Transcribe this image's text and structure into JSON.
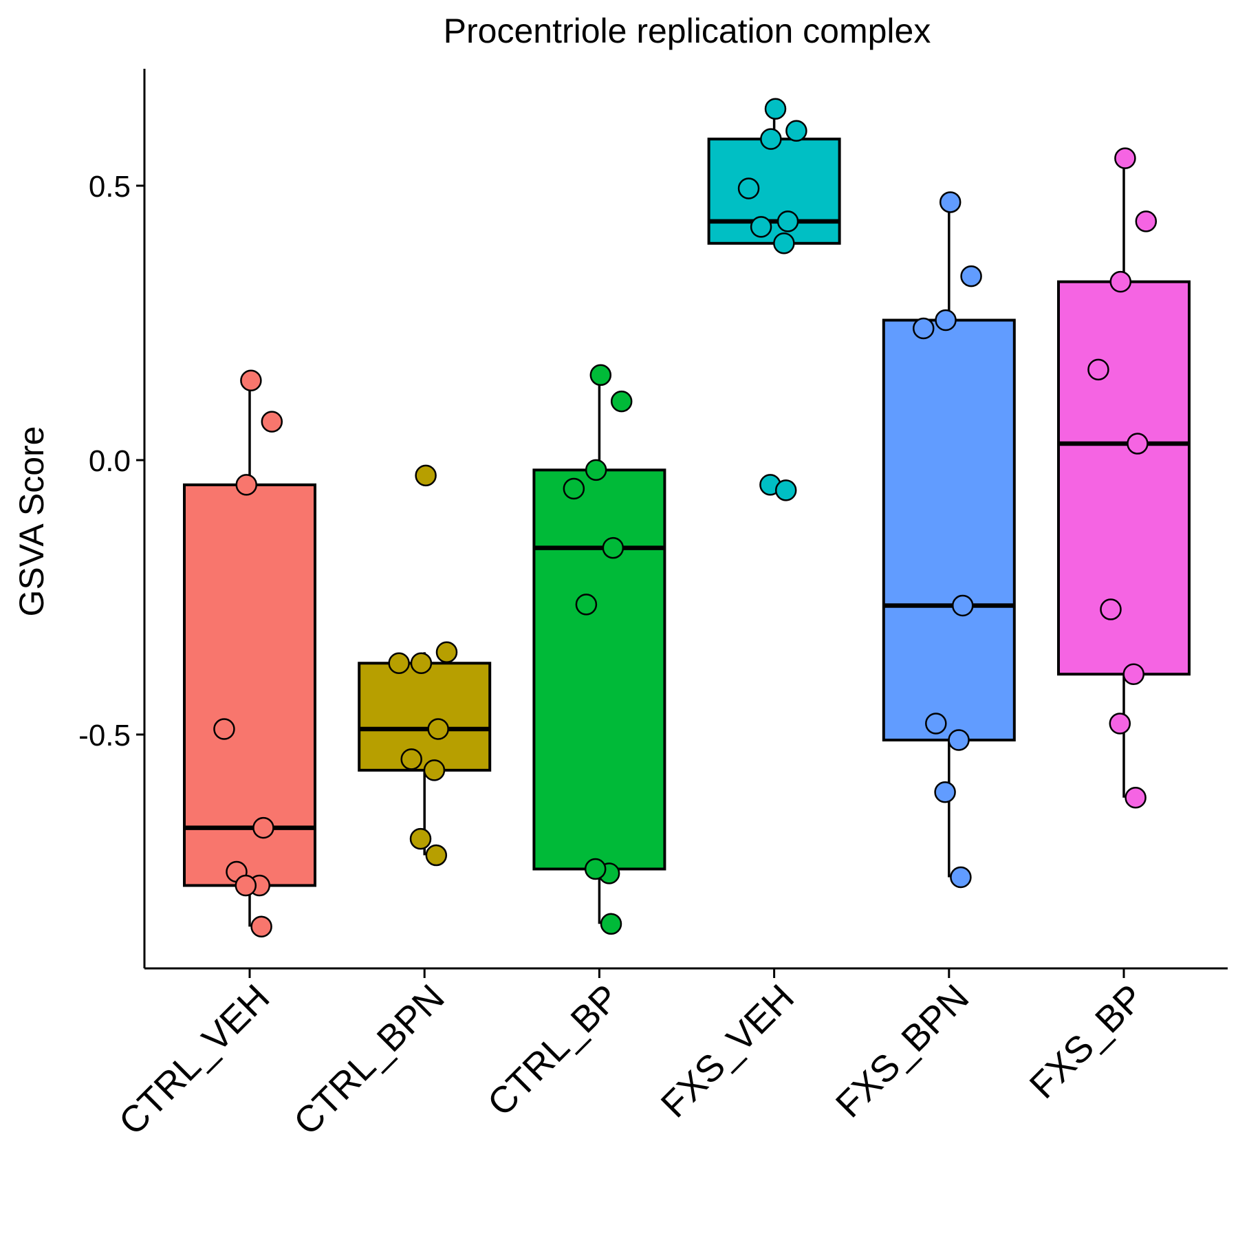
{
  "chart_data": {
    "type": "box",
    "title": "Procentriole replication complex",
    "xlabel": "",
    "ylabel": "GSVA Score",
    "ylim": [
      -0.91,
      0.72
    ],
    "yticks": [
      -0.5,
      0.0,
      0.5
    ],
    "ytick_labels": [
      "-0.5",
      "0.0",
      "0.5"
    ],
    "grid": false,
    "legend": "none",
    "categories": [
      "CTRL_VEH",
      "CTRL_BPN",
      "CTRL_BP",
      "FXS_VEH",
      "FXS_BPN",
      "FXS_BP"
    ],
    "groups": [
      {
        "name": "CTRL_VEH",
        "color": "#F8766D",
        "whisker_low": -0.85,
        "q1": -0.775,
        "median": -0.67,
        "q3": -0.045,
        "whisker_high": 0.145,
        "points": [
          0.145,
          0.07,
          -0.045,
          -0.49,
          -0.67,
          -0.75,
          -0.775,
          -0.775,
          -0.85
        ],
        "outliers": []
      },
      {
        "name": "CTRL_BPN",
        "color": "#B79F00",
        "whisker_low": -0.72,
        "q1": -0.565,
        "median": -0.49,
        "q3": -0.37,
        "whisker_high": -0.35,
        "points": [
          -0.028,
          -0.35,
          -0.37,
          -0.37,
          -0.49,
          -0.545,
          -0.565,
          -0.69,
          -0.72
        ],
        "outliers": [
          -0.028
        ]
      },
      {
        "name": "CTRL_BP",
        "color": "#00BA38",
        "whisker_low": -0.845,
        "q1": -0.745,
        "median": -0.16,
        "q3": -0.018,
        "whisker_high": 0.155,
        "points": [
          0.155,
          0.107,
          -0.018,
          -0.052,
          -0.16,
          -0.263,
          -0.753,
          -0.745,
          -0.845
        ],
        "outliers": []
      },
      {
        "name": "FXS_VEH",
        "color": "#00BFC4",
        "whisker_low": 0.395,
        "q1": 0.395,
        "median": 0.435,
        "q3": 0.585,
        "whisker_high": 0.64,
        "points": [
          0.64,
          0.6,
          0.585,
          0.495,
          0.435,
          0.425,
          0.395,
          -0.045,
          -0.055
        ],
        "outliers": [
          -0.045,
          -0.055
        ]
      },
      {
        "name": "FXS_BPN",
        "color": "#619CFF",
        "whisker_low": -0.76,
        "q1": -0.51,
        "median": -0.265,
        "q3": 0.255,
        "whisker_high": 0.47,
        "points": [
          0.47,
          0.335,
          0.255,
          0.24,
          -0.265,
          -0.48,
          -0.51,
          -0.605,
          -0.76
        ],
        "outliers": []
      },
      {
        "name": "FXS_BP",
        "color": "#F564E3",
        "whisker_low": -0.615,
        "q1": -0.39,
        "median": 0.03,
        "q3": 0.325,
        "whisker_high": 0.55,
        "points": [
          0.55,
          0.435,
          0.325,
          0.165,
          0.03,
          -0.272,
          -0.39,
          -0.48,
          -0.615
        ],
        "outliers": []
      }
    ]
  }
}
